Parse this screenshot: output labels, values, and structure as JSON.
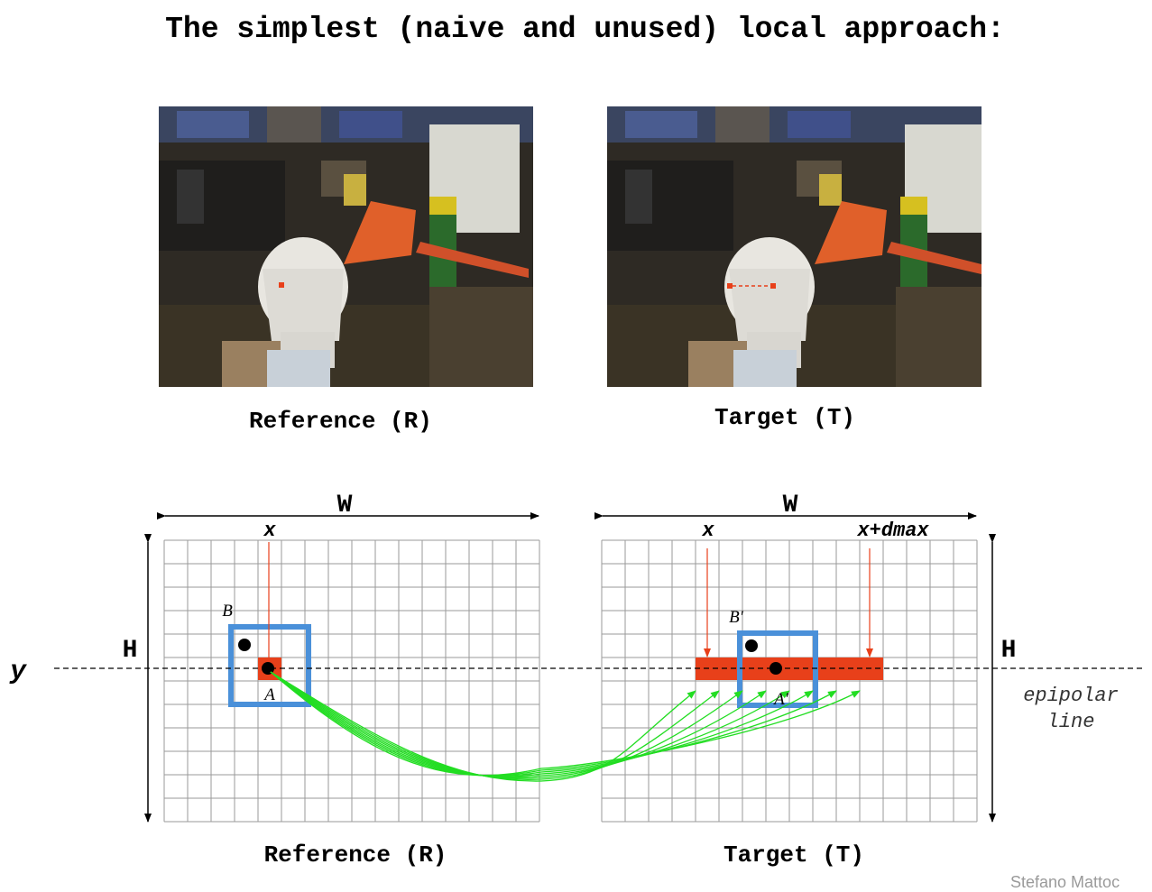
{
  "title": "The simplest (naive and unused) local approach:",
  "photos": {
    "reference_caption": "Reference (R)",
    "target_caption": "Target (T)"
  },
  "diagram": {
    "left_grid": {
      "width_label": "W",
      "height_label": "H",
      "x_label": "x",
      "point_a_label": "A",
      "point_b_label": "B",
      "caption": "Reference (R)"
    },
    "right_grid": {
      "width_label": "W",
      "height_label": "H",
      "x_label": "x",
      "xmax_label": "x+dmax",
      "point_a_label": "A′",
      "point_b_label": "B′",
      "caption": "Target (T)"
    },
    "y_label": "y",
    "epipolar_label_line1": "epipolar",
    "epipolar_label_line2": "line"
  },
  "colors": {
    "grid": "#9a9a9a",
    "window": "#4a90d9",
    "highlight": "#e8401a",
    "match_arrows": "#22dd22",
    "red_guide": "#e8401a"
  },
  "credit": "Stefano Mattoc"
}
